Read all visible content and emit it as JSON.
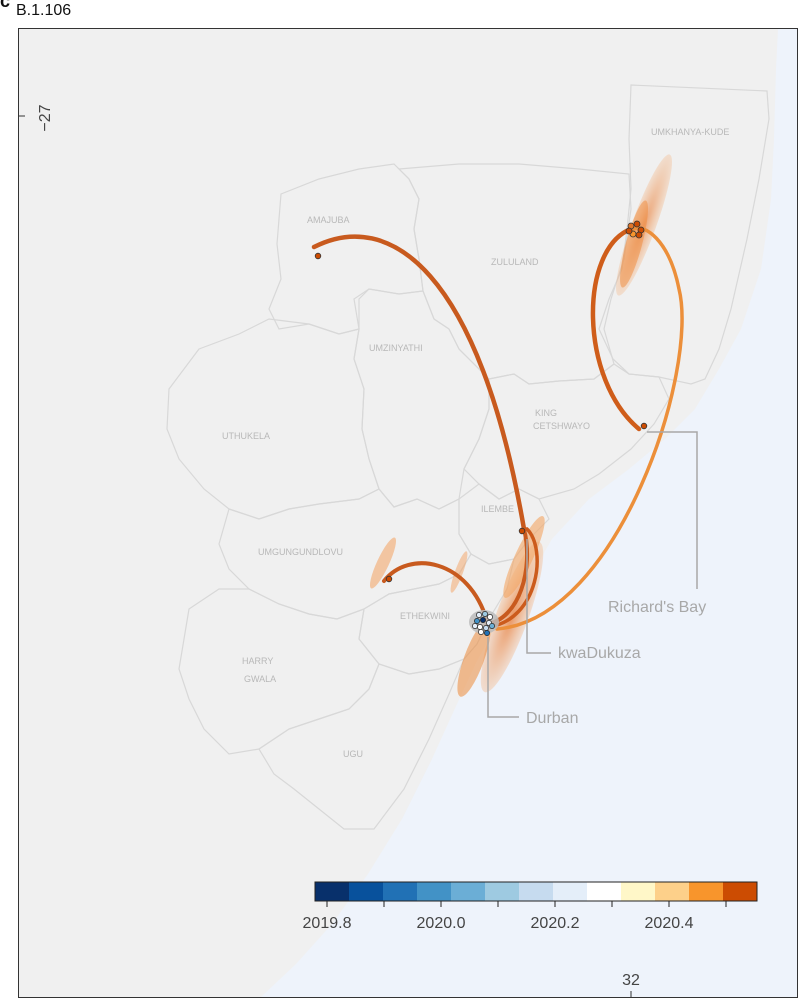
{
  "panel": {
    "letter": "c",
    "title": "B.1.106"
  },
  "map": {
    "land_color": "#f0f0f0",
    "sea_color": "#eef3fb",
    "border_color": "#d8d8d8",
    "regions": [
      "UMKHANYA-KUDE",
      "AMAJUBA",
      "ZULULAND",
      "UMZINYATHI",
      "UTHUKELA",
      "KING",
      "CETSHWAYO",
      "ILEMBE",
      "UMGUNGUNDLOVU",
      "ETHEKWINI",
      "HARRY",
      "GWALA",
      "UGU"
    ],
    "callouts": [
      "Richard's Bay",
      "kwaDukuza",
      "Durban"
    ],
    "axis": {
      "latitude_tick": "−27",
      "longitude_tick": "32"
    }
  },
  "legend": {
    "colors": [
      "#08306b",
      "#08519c",
      "#2171b5",
      "#4292c6",
      "#6baed6",
      "#9ecae1",
      "#c6dbef",
      "#e4eef9",
      "#ffffff",
      "#fff7c8",
      "#fdd08a",
      "#f8952c",
      "#cc4c02"
    ],
    "tick_labels": [
      "2019.8",
      "2020.0",
      "2020.2",
      "2020.4"
    ]
  }
}
